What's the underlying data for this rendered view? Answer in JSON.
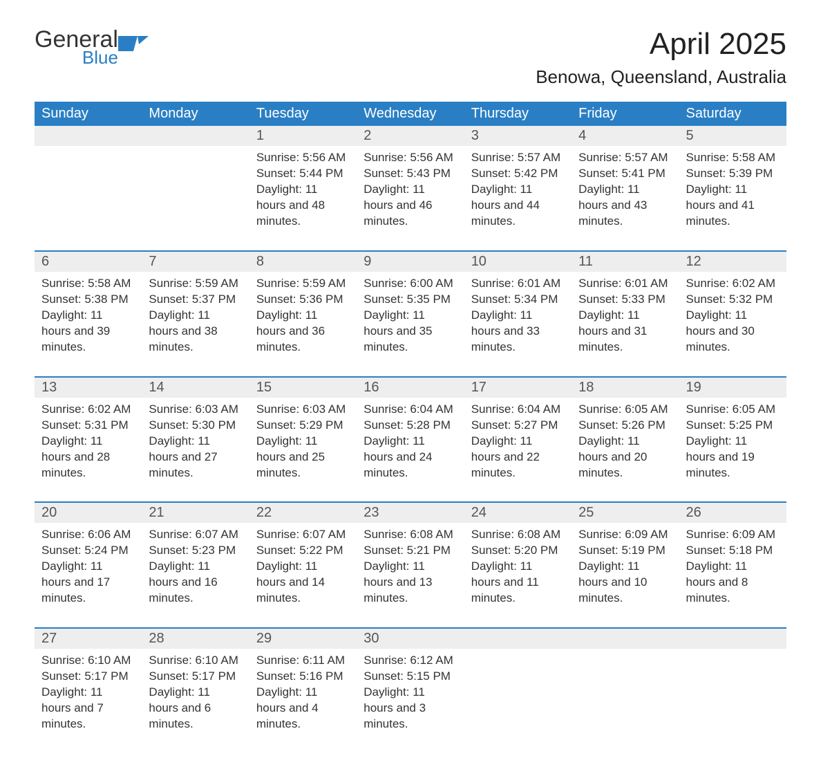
{
  "logo": {
    "word1": "General",
    "word2": "Blue",
    "flag_color": "#2a7fc4"
  },
  "title": "April 2025",
  "location": "Benowa, Queensland, Australia",
  "colors": {
    "header_bg": "#2a7fc4",
    "header_text": "#ffffff",
    "daynum_bg": "#eeeeee",
    "text": "#333333",
    "border_top": "#2a7fc4"
  },
  "day_headers": [
    "Sunday",
    "Monday",
    "Tuesday",
    "Wednesday",
    "Thursday",
    "Friday",
    "Saturday"
  ],
  "weeks": [
    [
      null,
      null,
      {
        "n": "1",
        "sr": "Sunrise: 5:56 AM",
        "ss": "Sunset: 5:44 PM",
        "dl": "Daylight: 11 hours and 48 minutes."
      },
      {
        "n": "2",
        "sr": "Sunrise: 5:56 AM",
        "ss": "Sunset: 5:43 PM",
        "dl": "Daylight: 11 hours and 46 minutes."
      },
      {
        "n": "3",
        "sr": "Sunrise: 5:57 AM",
        "ss": "Sunset: 5:42 PM",
        "dl": "Daylight: 11 hours and 44 minutes."
      },
      {
        "n": "4",
        "sr": "Sunrise: 5:57 AM",
        "ss": "Sunset: 5:41 PM",
        "dl": "Daylight: 11 hours and 43 minutes."
      },
      {
        "n": "5",
        "sr": "Sunrise: 5:58 AM",
        "ss": "Sunset: 5:39 PM",
        "dl": "Daylight: 11 hours and 41 minutes."
      }
    ],
    [
      {
        "n": "6",
        "sr": "Sunrise: 5:58 AM",
        "ss": "Sunset: 5:38 PM",
        "dl": "Daylight: 11 hours and 39 minutes."
      },
      {
        "n": "7",
        "sr": "Sunrise: 5:59 AM",
        "ss": "Sunset: 5:37 PM",
        "dl": "Daylight: 11 hours and 38 minutes."
      },
      {
        "n": "8",
        "sr": "Sunrise: 5:59 AM",
        "ss": "Sunset: 5:36 PM",
        "dl": "Daylight: 11 hours and 36 minutes."
      },
      {
        "n": "9",
        "sr": "Sunrise: 6:00 AM",
        "ss": "Sunset: 5:35 PM",
        "dl": "Daylight: 11 hours and 35 minutes."
      },
      {
        "n": "10",
        "sr": "Sunrise: 6:01 AM",
        "ss": "Sunset: 5:34 PM",
        "dl": "Daylight: 11 hours and 33 minutes."
      },
      {
        "n": "11",
        "sr": "Sunrise: 6:01 AM",
        "ss": "Sunset: 5:33 PM",
        "dl": "Daylight: 11 hours and 31 minutes."
      },
      {
        "n": "12",
        "sr": "Sunrise: 6:02 AM",
        "ss": "Sunset: 5:32 PM",
        "dl": "Daylight: 11 hours and 30 minutes."
      }
    ],
    [
      {
        "n": "13",
        "sr": "Sunrise: 6:02 AM",
        "ss": "Sunset: 5:31 PM",
        "dl": "Daylight: 11 hours and 28 minutes."
      },
      {
        "n": "14",
        "sr": "Sunrise: 6:03 AM",
        "ss": "Sunset: 5:30 PM",
        "dl": "Daylight: 11 hours and 27 minutes."
      },
      {
        "n": "15",
        "sr": "Sunrise: 6:03 AM",
        "ss": "Sunset: 5:29 PM",
        "dl": "Daylight: 11 hours and 25 minutes."
      },
      {
        "n": "16",
        "sr": "Sunrise: 6:04 AM",
        "ss": "Sunset: 5:28 PM",
        "dl": "Daylight: 11 hours and 24 minutes."
      },
      {
        "n": "17",
        "sr": "Sunrise: 6:04 AM",
        "ss": "Sunset: 5:27 PM",
        "dl": "Daylight: 11 hours and 22 minutes."
      },
      {
        "n": "18",
        "sr": "Sunrise: 6:05 AM",
        "ss": "Sunset: 5:26 PM",
        "dl": "Daylight: 11 hours and 20 minutes."
      },
      {
        "n": "19",
        "sr": "Sunrise: 6:05 AM",
        "ss": "Sunset: 5:25 PM",
        "dl": "Daylight: 11 hours and 19 minutes."
      }
    ],
    [
      {
        "n": "20",
        "sr": "Sunrise: 6:06 AM",
        "ss": "Sunset: 5:24 PM",
        "dl": "Daylight: 11 hours and 17 minutes."
      },
      {
        "n": "21",
        "sr": "Sunrise: 6:07 AM",
        "ss": "Sunset: 5:23 PM",
        "dl": "Daylight: 11 hours and 16 minutes."
      },
      {
        "n": "22",
        "sr": "Sunrise: 6:07 AM",
        "ss": "Sunset: 5:22 PM",
        "dl": "Daylight: 11 hours and 14 minutes."
      },
      {
        "n": "23",
        "sr": "Sunrise: 6:08 AM",
        "ss": "Sunset: 5:21 PM",
        "dl": "Daylight: 11 hours and 13 minutes."
      },
      {
        "n": "24",
        "sr": "Sunrise: 6:08 AM",
        "ss": "Sunset: 5:20 PM",
        "dl": "Daylight: 11 hours and 11 minutes."
      },
      {
        "n": "25",
        "sr": "Sunrise: 6:09 AM",
        "ss": "Sunset: 5:19 PM",
        "dl": "Daylight: 11 hours and 10 minutes."
      },
      {
        "n": "26",
        "sr": "Sunrise: 6:09 AM",
        "ss": "Sunset: 5:18 PM",
        "dl": "Daylight: 11 hours and 8 minutes."
      }
    ],
    [
      {
        "n": "27",
        "sr": "Sunrise: 6:10 AM",
        "ss": "Sunset: 5:17 PM",
        "dl": "Daylight: 11 hours and 7 minutes."
      },
      {
        "n": "28",
        "sr": "Sunrise: 6:10 AM",
        "ss": "Sunset: 5:17 PM",
        "dl": "Daylight: 11 hours and 6 minutes."
      },
      {
        "n": "29",
        "sr": "Sunrise: 6:11 AM",
        "ss": "Sunset: 5:16 PM",
        "dl": "Daylight: 11 hours and 4 minutes."
      },
      {
        "n": "30",
        "sr": "Sunrise: 6:12 AM",
        "ss": "Sunset: 5:15 PM",
        "dl": "Daylight: 11 hours and 3 minutes."
      },
      null,
      null,
      null
    ]
  ]
}
